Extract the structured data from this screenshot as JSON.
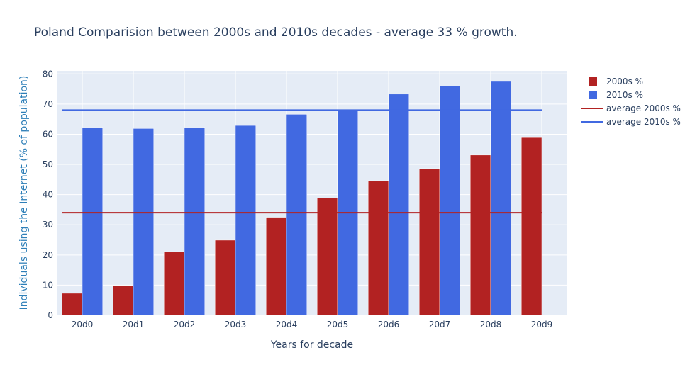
{
  "chart_data": {
    "type": "bar",
    "title": "Poland Comparision between 2000s and 2010s decades - average 33 % growth.",
    "xlabel": "Years for decade",
    "ylabel": "Individuals using the Internet (% of population)",
    "categories": [
      "20d0",
      "20d1",
      "20d2",
      "20d3",
      "20d4",
      "20d5",
      "20d6",
      "20d7",
      "20d8",
      "20d9"
    ],
    "ylim": [
      0,
      81
    ],
    "yticks": [
      0,
      10,
      20,
      30,
      40,
      50,
      60,
      70,
      80
    ],
    "grid": true,
    "legend_position": "top-right",
    "series": [
      {
        "name": "2000s %",
        "type": "bar",
        "color": "#b22222",
        "values": [
          7.3,
          9.9,
          21.1,
          24.9,
          32.5,
          38.8,
          44.6,
          48.6,
          53.1,
          58.9
        ]
      },
      {
        "name": "2010s %",
        "type": "bar",
        "color": "#4169e1",
        "values": [
          62.3,
          61.9,
          62.3,
          62.9,
          66.6,
          68.0,
          73.3,
          75.9,
          77.5,
          null
        ]
      },
      {
        "name": "average 2000s %",
        "type": "line",
        "color": "#b22222",
        "value": 34.0
      },
      {
        "name": "average 2010s %",
        "type": "line",
        "color": "#4169e1",
        "value": 68.0
      }
    ]
  }
}
